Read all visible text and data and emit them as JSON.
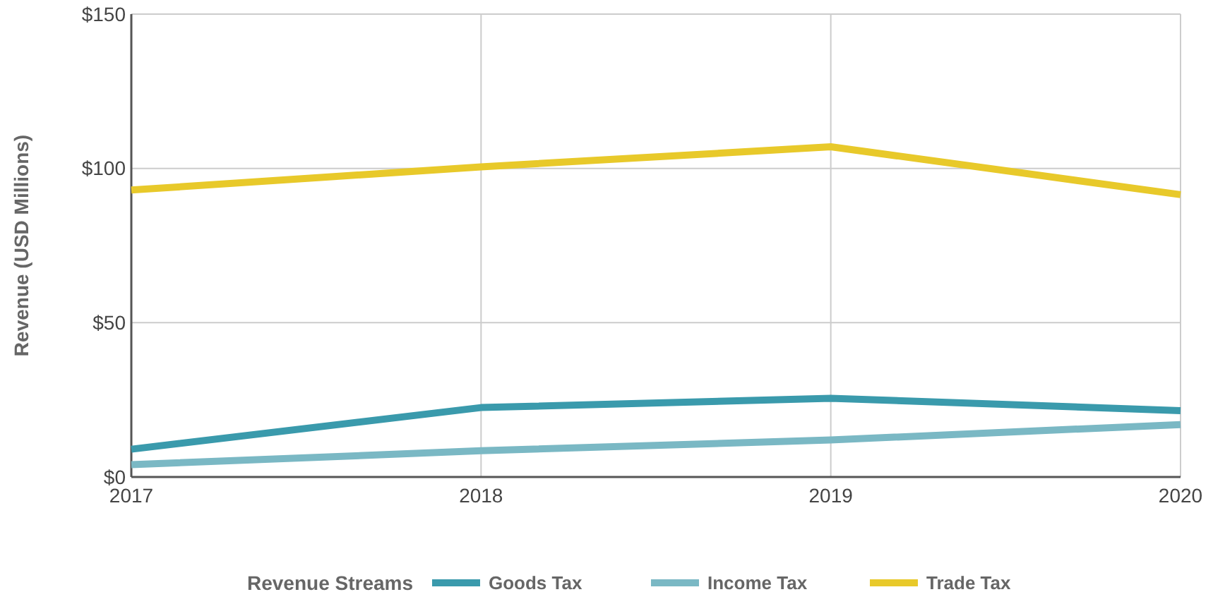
{
  "chart_data": {
    "type": "line",
    "ylabel": "Revenue (USD Millions)",
    "legend_title": "Revenue Streams",
    "x": [
      2017,
      2018,
      2019,
      2020
    ],
    "series": [
      {
        "name": "Goods Tax",
        "color": "#3a9aac",
        "values": [
          9,
          22.5,
          25.5,
          21.5
        ]
      },
      {
        "name": "Income Tax",
        "color": "#7ab8c4",
        "values": [
          4,
          8.5,
          12,
          17
        ]
      },
      {
        "name": "Trade Tax",
        "color": "#e8c92a",
        "values": [
          93,
          100.5,
          107,
          91.5
        ]
      }
    ],
    "xlim": [
      2017,
      2020
    ],
    "xticks": [
      2017,
      2018,
      2019,
      2020
    ],
    "ylim": [
      0,
      150
    ],
    "yticks": [
      {
        "value": 0,
        "label": "$0"
      },
      {
        "value": 50,
        "label": "$50"
      },
      {
        "value": 100,
        "label": "$100"
      },
      {
        "value": 150,
        "label": "$150"
      }
    ],
    "grid": true,
    "legend": "bottom",
    "marker": "none",
    "line_style": "solid"
  }
}
